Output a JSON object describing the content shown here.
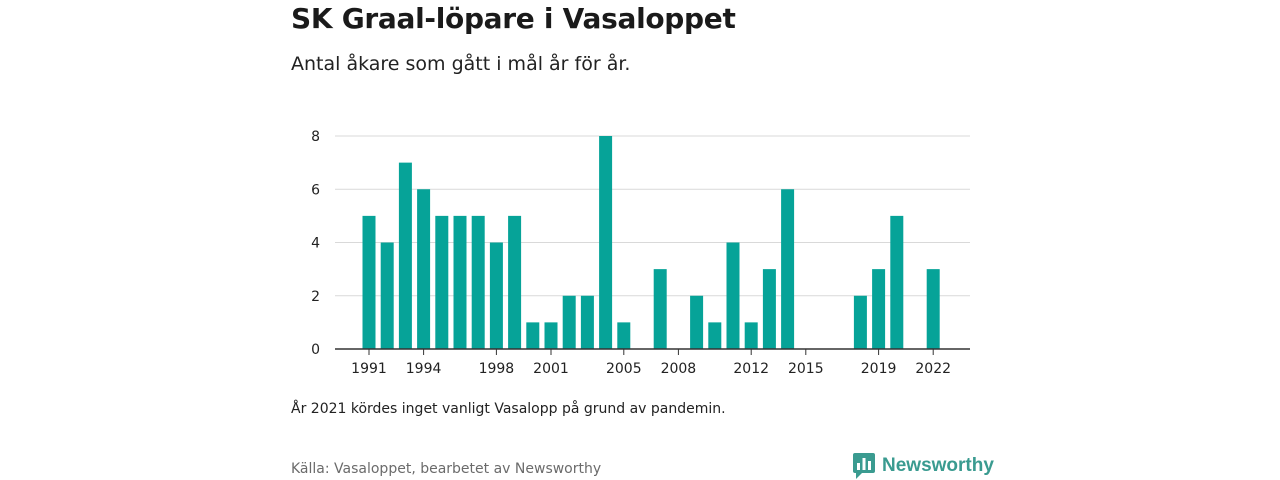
{
  "header": {
    "title": "SK Graal-löpare i Vasaloppet",
    "subtitle": "Antal åkare som gått i mål år för år."
  },
  "footer": {
    "note": "År 2021 kördes inget vanligt Vasalopp på grund av pandemin.",
    "source": "Källa: Vasaloppet, bearbetet av Newsworthy",
    "brand": "Newsworthy",
    "brand_icon": "newsworthy-logo-icon"
  },
  "colors": {
    "bar": "#06a398",
    "grid": "#d9d9d9",
    "axis": "#333333",
    "brand": "#3a9b90"
  },
  "chart_data": {
    "type": "bar",
    "title": "SK Graal-löpare i Vasaloppet",
    "subtitle": "Antal åkare som gått i mål år för år.",
    "xlabel": "",
    "ylabel": "",
    "ylim": [
      0,
      8
    ],
    "yticks": [
      0,
      2,
      4,
      6,
      8
    ],
    "xticks": [
      1991,
      1994,
      1998,
      2001,
      2005,
      2008,
      2012,
      2015,
      2019,
      2022
    ],
    "grid": true,
    "legend": "none",
    "categories": [
      1991,
      1992,
      1993,
      1994,
      1995,
      1996,
      1997,
      1998,
      1999,
      2000,
      2001,
      2002,
      2003,
      2004,
      2005,
      2006,
      2007,
      2008,
      2009,
      2010,
      2011,
      2012,
      2013,
      2014,
      2015,
      2016,
      2017,
      2018,
      2019,
      2020,
      2021,
      2022
    ],
    "values": [
      5,
      4,
      7,
      6,
      5,
      5,
      5,
      4,
      5,
      1,
      1,
      2,
      2,
      8,
      1,
      0,
      3,
      0,
      2,
      1,
      4,
      1,
      3,
      6,
      0,
      0,
      0,
      2,
      3,
      5,
      0,
      3
    ]
  }
}
